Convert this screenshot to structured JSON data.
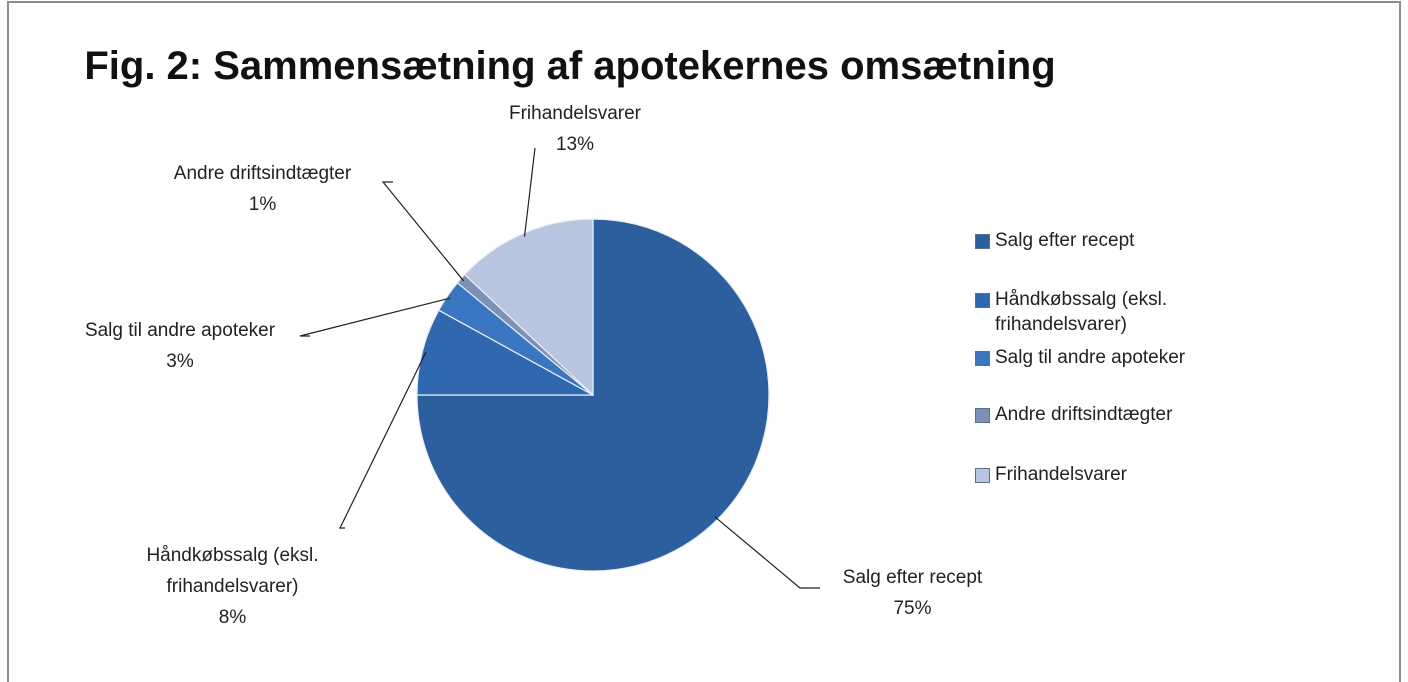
{
  "chart_data": {
    "type": "pie",
    "title": "Fig. 2: Sammensætning af apotekernes omsætning",
    "categories": [
      "Salg efter recept",
      "Håndkøbssalg (eksl. frihandelsvarer)",
      "Salg til andre apoteker",
      "Andre driftsindtægter",
      "Frihandelsvarer"
    ],
    "values": [
      75,
      8,
      3,
      1,
      13
    ],
    "value_labels": [
      "75%",
      "8%",
      "3%",
      "1%",
      "13%"
    ],
    "colors": [
      "#2d5f9f",
      "#3068b0",
      "#3a76c2",
      "#7d91b4",
      "#b9c5de"
    ],
    "legend": "right"
  }
}
